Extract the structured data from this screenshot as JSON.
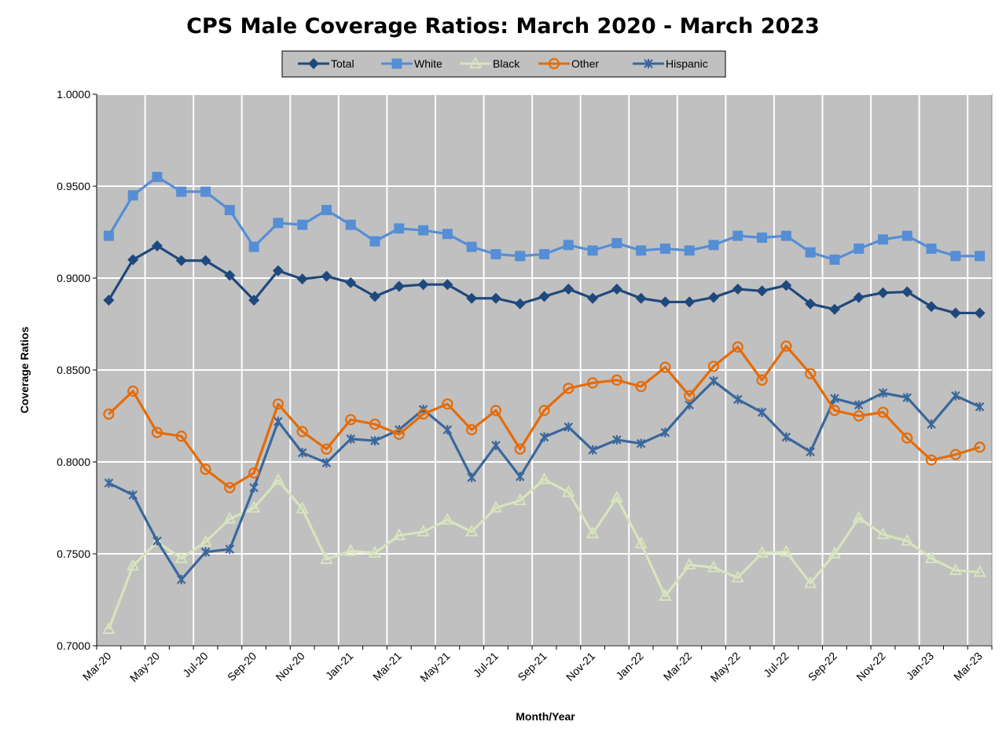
{
  "chart_data": {
    "type": "line",
    "title": "CPS Male Coverage Ratios: March 2020 - March 2023",
    "xlabel": "Month/Year",
    "ylabel": "Coverage Ratios",
    "ylim": [
      0.7,
      1.0
    ],
    "yticks": [
      "0.7000",
      "0.7500",
      "0.8000",
      "0.8500",
      "0.9000",
      "0.9500",
      "1.0000"
    ],
    "grid": true,
    "legend_position": "top",
    "x": [
      "Mar-20",
      "Apr-20",
      "May-20",
      "Jun-20",
      "Jul-20",
      "Aug-20",
      "Sep-20",
      "Oct-20",
      "Nov-20",
      "Dec-20",
      "Jan-21",
      "Feb-21",
      "Mar-21",
      "Apr-21",
      "May-21",
      "Jun-21",
      "Jul-21",
      "Aug-21",
      "Sep-21",
      "Oct-21",
      "Nov-21",
      "Dec-21",
      "Jan-22",
      "Feb-22",
      "Mar-22",
      "Apr-22",
      "May-22",
      "Jun-22",
      "Jul-22",
      "Aug-22",
      "Sep-22",
      "Oct-22",
      "Nov-22",
      "Dec-22",
      "Jan-23",
      "Feb-23",
      "Mar-23"
    ],
    "xtick_labels": [
      "Mar-20",
      "May-20",
      "Jul-20",
      "Sep-20",
      "Nov-20",
      "Jan-21",
      "Mar-21",
      "May-21",
      "Jul-21",
      "Sep-21",
      "Nov-21",
      "Jan-22",
      "Mar-22",
      "May-22",
      "Jul-22",
      "Sep-22",
      "Nov-22",
      "Jan-23",
      "Mar-23"
    ],
    "series": [
      {
        "name": "Total",
        "color": "#1f497d",
        "marker": "diamond",
        "values": [
          0.888,
          0.91,
          0.9175,
          0.9095,
          0.9095,
          0.9015,
          0.888,
          0.904,
          0.8995,
          0.901,
          0.8975,
          0.89,
          0.8955,
          0.8965,
          0.8965,
          0.889,
          0.889,
          0.886,
          0.89,
          0.894,
          0.889,
          0.894,
          0.889,
          0.887,
          0.887,
          0.8895,
          0.894,
          0.893,
          0.896,
          0.886,
          0.883,
          0.8895,
          0.892,
          0.8925,
          0.8845,
          0.881,
          0.881
        ]
      },
      {
        "name": "White",
        "color": "#558ed5",
        "marker": "square",
        "values": [
          0.923,
          0.945,
          0.955,
          0.947,
          0.947,
          0.937,
          0.917,
          0.93,
          0.929,
          0.937,
          0.929,
          0.92,
          0.927,
          0.926,
          0.924,
          0.917,
          0.913,
          0.912,
          0.913,
          0.918,
          0.915,
          0.919,
          0.915,
          0.916,
          0.915,
          0.918,
          0.923,
          0.922,
          0.923,
          0.914,
          0.91,
          0.916,
          0.921,
          0.923,
          0.916,
          0.912,
          0.912
        ]
      },
      {
        "name": "Black",
        "color": "#d7e4bd",
        "marker": "triangle",
        "values": [
          0.709,
          0.7435,
          0.7565,
          0.7475,
          0.7565,
          0.769,
          0.775,
          0.79,
          0.7745,
          0.747,
          0.7515,
          0.7505,
          0.76,
          0.762,
          0.7685,
          0.762,
          0.775,
          0.779,
          0.7905,
          0.7835,
          0.761,
          0.7805,
          0.7555,
          0.727,
          0.744,
          0.7425,
          0.737,
          0.7505,
          0.751,
          0.734,
          0.75,
          0.7695,
          0.7605,
          0.757,
          0.7475,
          0.741,
          0.74
        ]
      },
      {
        "name": "Other",
        "color": "#e46c0a",
        "marker": "circle",
        "values": [
          0.826,
          0.8385,
          0.816,
          0.814,
          0.796,
          0.786,
          0.794,
          0.8315,
          0.8165,
          0.807,
          0.823,
          0.8205,
          0.815,
          0.826,
          0.8315,
          0.8175,
          0.828,
          0.807,
          0.828,
          0.84,
          0.843,
          0.8445,
          0.841,
          0.8515,
          0.836,
          0.852,
          0.8625,
          0.8445,
          0.863,
          0.848,
          0.828,
          0.825,
          0.827,
          0.813,
          0.801,
          0.804,
          0.808
        ]
      },
      {
        "name": "Hispanic",
        "color": "#3a679c",
        "marker": "x",
        "values": [
          0.7885,
          0.782,
          0.757,
          0.736,
          0.751,
          0.7525,
          0.786,
          0.822,
          0.805,
          0.7995,
          0.8125,
          0.8115,
          0.8175,
          0.8285,
          0.8175,
          0.7915,
          0.809,
          0.792,
          0.8135,
          0.819,
          0.8065,
          0.812,
          0.81,
          0.816,
          0.831,
          0.844,
          0.834,
          0.827,
          0.8135,
          0.8055,
          0.8345,
          0.831,
          0.8375,
          0.835,
          0.8205,
          0.836,
          0.83
        ]
      }
    ]
  }
}
